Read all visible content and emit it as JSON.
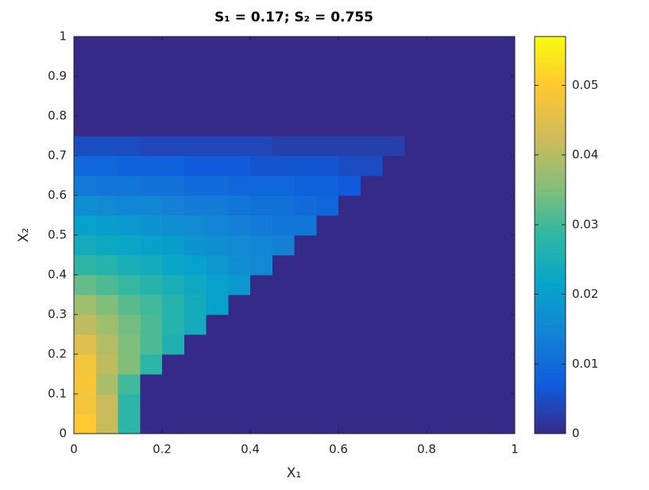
{
  "chart_data": {
    "type": "heatmap",
    "title": "S₁ = 0.17; S₂ = 0.755",
    "xlabel": "X₁",
    "ylabel": "X₂",
    "x": [
      0.025,
      0.075,
      0.125,
      0.175,
      0.225,
      0.275,
      0.325,
      0.375,
      0.425,
      0.475,
      0.525,
      0.575,
      0.625,
      0.675,
      0.725,
      0.775,
      0.825,
      0.875,
      0.925,
      0.975
    ],
    "y": [
      0.025,
      0.075,
      0.125,
      0.175,
      0.225,
      0.275,
      0.325,
      0.375,
      0.425,
      0.475,
      0.525,
      0.575,
      0.625,
      0.675,
      0.725,
      0.775,
      0.825,
      0.875,
      0.925,
      0.975
    ],
    "z": [
      [
        0.05,
        0.042,
        0.028,
        0,
        0,
        0,
        0,
        0,
        0,
        0,
        0,
        0,
        0,
        0,
        0,
        0,
        0,
        0,
        0,
        0
      ],
      [
        0.048,
        0.042,
        0.028,
        0,
        0,
        0,
        0,
        0,
        0,
        0,
        0,
        0,
        0,
        0,
        0,
        0,
        0,
        0,
        0,
        0
      ],
      [
        0.049,
        0.039,
        0.03,
        0,
        0,
        0,
        0,
        0,
        0,
        0,
        0,
        0,
        0,
        0,
        0,
        0,
        0,
        0,
        0,
        0
      ],
      [
        0.048,
        0.041,
        0.035,
        0.028,
        0,
        0,
        0,
        0,
        0,
        0,
        0,
        0,
        0,
        0,
        0,
        0,
        0,
        0,
        0,
        0
      ],
      [
        0.045,
        0.04,
        0.035,
        0.031,
        0.026,
        0,
        0,
        0,
        0,
        0,
        0,
        0,
        0,
        0,
        0,
        0,
        0,
        0,
        0,
        0
      ],
      [
        0.041,
        0.038,
        0.034,
        0.031,
        0.027,
        0.024,
        0,
        0,
        0,
        0,
        0,
        0,
        0,
        0,
        0,
        0,
        0,
        0,
        0,
        0
      ],
      [
        0.038,
        0.035,
        0.032,
        0.03,
        0.027,
        0.024,
        0.021,
        0,
        0,
        0,
        0,
        0,
        0,
        0,
        0,
        0,
        0,
        0,
        0,
        0
      ],
      [
        0.033,
        0.031,
        0.029,
        0.027,
        0.025,
        0.023,
        0.021,
        0.019,
        0,
        0,
        0,
        0,
        0,
        0,
        0,
        0,
        0,
        0,
        0,
        0
      ],
      [
        0.028,
        0.027,
        0.025,
        0.024,
        0.022,
        0.021,
        0.019,
        0.017,
        0.016,
        0,
        0,
        0,
        0,
        0,
        0,
        0,
        0,
        0,
        0,
        0
      ],
      [
        0.024,
        0.023,
        0.022,
        0.021,
        0.02,
        0.018,
        0.017,
        0.016,
        0.015,
        0.014,
        0,
        0,
        0,
        0,
        0,
        0,
        0,
        0,
        0,
        0
      ],
      [
        0.021,
        0.02,
        0.019,
        0.018,
        0.017,
        0.016,
        0.015,
        0.014,
        0.013,
        0.012,
        0.012,
        0,
        0,
        0,
        0,
        0,
        0,
        0,
        0,
        0
      ],
      [
        0.017,
        0.016,
        0.015,
        0.015,
        0.014,
        0.013,
        0.013,
        0.012,
        0.011,
        0.011,
        0.01,
        0.009,
        0,
        0,
        0,
        0,
        0,
        0,
        0,
        0
      ],
      [
        0.013,
        0.012,
        0.012,
        0.011,
        0.011,
        0.01,
        0.01,
        0.009,
        0.009,
        0.009,
        0.008,
        0.008,
        0.007,
        0,
        0,
        0,
        0,
        0,
        0,
        0
      ],
      [
        0.009,
        0.009,
        0.008,
        0.008,
        0.008,
        0.007,
        0.007,
        0.007,
        0.006,
        0.006,
        0.006,
        0.006,
        0.005,
        0.005,
        0,
        0,
        0,
        0,
        0,
        0
      ],
      [
        0.005,
        0.005,
        0.005,
        0.004,
        0.004,
        0.004,
        0.004,
        0.004,
        0.004,
        0.003,
        0.003,
        0.003,
        0.003,
        0.003,
        0.003,
        0,
        0,
        0,
        0,
        0
      ],
      [
        0,
        0,
        0,
        0,
        0,
        0,
        0,
        0,
        0,
        0,
        0,
        0,
        0,
        0,
        0,
        0,
        0,
        0,
        0,
        0
      ],
      [
        0,
        0,
        0,
        0,
        0,
        0,
        0,
        0,
        0,
        0,
        0,
        0,
        0,
        0,
        0,
        0,
        0,
        0,
        0,
        0
      ],
      [
        0,
        0,
        0,
        0,
        0,
        0,
        0,
        0,
        0,
        0,
        0,
        0,
        0,
        0,
        0,
        0,
        0,
        0,
        0,
        0
      ],
      [
        0,
        0,
        0,
        0,
        0,
        0,
        0,
        0,
        0,
        0,
        0,
        0,
        0,
        0,
        0,
        0,
        0,
        0,
        0,
        0
      ],
      [
        0,
        0,
        0,
        0,
        0,
        0,
        0,
        0,
        0,
        0,
        0,
        0,
        0,
        0,
        0,
        0,
        0,
        0,
        0,
        0
      ]
    ],
    "xlim": [
      0,
      1
    ],
    "ylim": [
      0,
      1
    ],
    "xticks": [
      0,
      0.2,
      0.4,
      0.6,
      0.8,
      1
    ],
    "yticks": [
      0,
      0.1,
      0.2,
      0.3,
      0.4,
      0.5,
      0.6,
      0.7,
      0.8,
      0.9,
      1
    ],
    "clim": [
      0,
      0.057
    ],
    "cticks": [
      0,
      0.01,
      0.02,
      0.03,
      0.04,
      0.05
    ],
    "colormap": [
      "#352a87",
      "#0f5cdd",
      "#1481d6",
      "#06a4ca",
      "#2eb7a4",
      "#87bf77",
      "#d1bb59",
      "#fec832",
      "#f9fb0e"
    ]
  }
}
